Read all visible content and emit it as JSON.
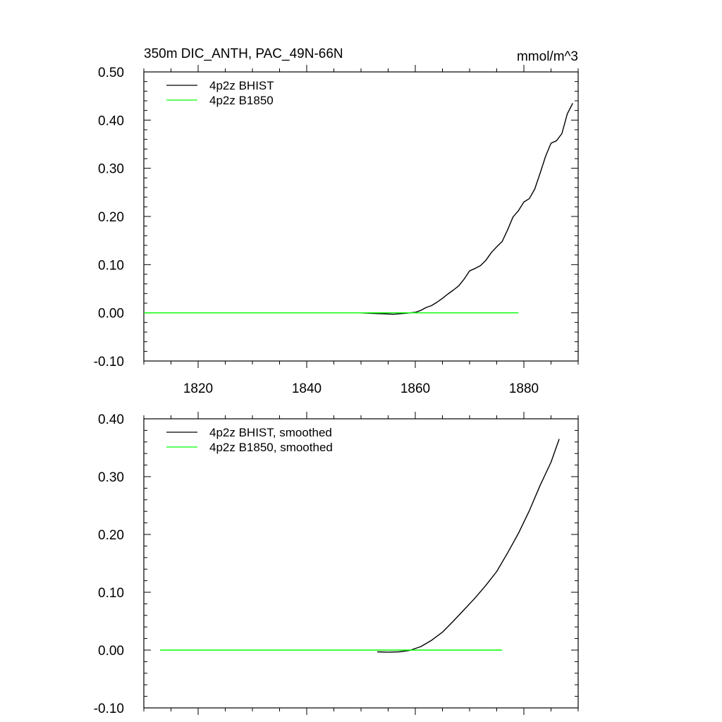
{
  "chart_data": [
    {
      "type": "line",
      "title": "350m DIC_ANTH, PAC_49N-66N",
      "units": "mmol/m^3",
      "xlim": [
        1810,
        1890
      ],
      "ylim": [
        -0.1,
        0.5
      ],
      "x_ticks": [
        1820,
        1840,
        1860,
        1880
      ],
      "x_tick_labels": [
        "1820",
        "1840",
        "1860",
        "1880"
      ],
      "y_ticks": [
        -0.1,
        0.0,
        0.1,
        0.2,
        0.3,
        0.4,
        0.5
      ],
      "y_tick_labels": [
        "-0.10",
        "0.00",
        "0.10",
        "0.20",
        "0.30",
        "0.40",
        "0.50"
      ],
      "legend_position": "top-left",
      "grid": false,
      "series": [
        {
          "name": "4p2z BHIST",
          "color": "#000000",
          "x": [
            1850,
            1852,
            1854,
            1856,
            1858,
            1860,
            1861,
            1862,
            1863,
            1864,
            1865,
            1866,
            1867,
            1868,
            1869,
            1870,
            1871,
            1872,
            1873,
            1874,
            1875,
            1876,
            1877,
            1878,
            1879,
            1880,
            1881,
            1882,
            1883,
            1884,
            1885,
            1886,
            1887,
            1888,
            1889
          ],
          "y": [
            0.0,
            -0.001,
            -0.002,
            -0.003,
            -0.001,
            0.001,
            0.005,
            0.011,
            0.015,
            0.022,
            0.03,
            0.039,
            0.047,
            0.056,
            0.07,
            0.087,
            0.092,
            0.098,
            0.109,
            0.125,
            0.137,
            0.148,
            0.172,
            0.199,
            0.212,
            0.23,
            0.237,
            0.257,
            0.29,
            0.325,
            0.352,
            0.357,
            0.372,
            0.413,
            0.435
          ]
        },
        {
          "name": "4p2z B1850",
          "color": "#00ff00",
          "x": [
            1810,
            1879
          ],
          "y": [
            0.0,
            0.0
          ]
        }
      ]
    },
    {
      "type": "line",
      "xlim": [
        1810,
        1890
      ],
      "ylim": [
        -0.1,
        0.4
      ],
      "x_ticks": [
        1820,
        1840,
        1860,
        1880
      ],
      "y_ticks": [
        -0.1,
        0.0,
        0.1,
        0.2,
        0.3,
        0.4
      ],
      "y_tick_labels": [
        "-0.10",
        "0.00",
        "0.10",
        "0.20",
        "0.30",
        "0.40"
      ],
      "legend_position": "top-left",
      "grid": false,
      "series": [
        {
          "name": "4p2z BHIST, smoothed",
          "color": "#000000",
          "x": [
            1853,
            1855,
            1857,
            1859,
            1861,
            1863,
            1865,
            1867,
            1869,
            1871,
            1873,
            1875,
            1877,
            1879,
            1881,
            1883,
            1885,
            1886.5
          ],
          "y": [
            -0.003,
            -0.0035,
            -0.003,
            -0.0005,
            0.006,
            0.017,
            0.031,
            0.05,
            0.07,
            0.09,
            0.112,
            0.136,
            0.168,
            0.202,
            0.241,
            0.285,
            0.325,
            0.365
          ]
        },
        {
          "name": "4p2z B1850, smoothed",
          "color": "#00ff00",
          "x": [
            1813,
            1876
          ],
          "y": [
            0.0,
            0.0
          ]
        }
      ]
    }
  ]
}
